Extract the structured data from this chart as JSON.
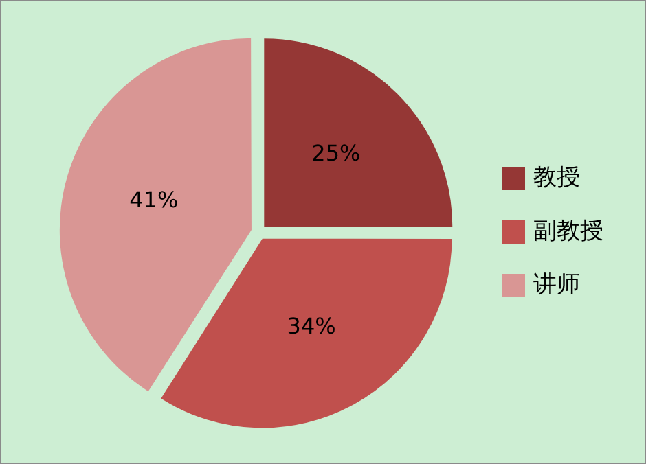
{
  "chart_data": {
    "type": "pie",
    "categories": [
      "教授",
      "副教授",
      "讲师"
    ],
    "values": [
      25,
      34,
      41
    ],
    "colors": [
      "#953735",
      "#c0504d",
      "#d99694"
    ],
    "value_labels": [
      "25%",
      "34%",
      "41%"
    ],
    "legend": "right"
  }
}
